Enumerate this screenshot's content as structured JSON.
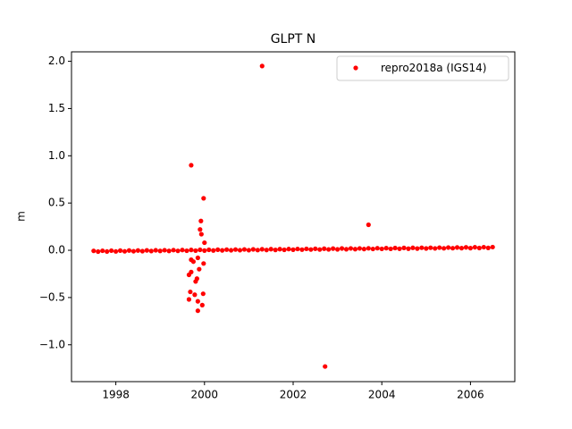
{
  "chart_data": {
    "type": "scatter",
    "title": "GLPT N",
    "ylabel": "m",
    "series": [
      {
        "name": "repro2018a (IGS14)",
        "color": "#ff0000",
        "x": [
          1997.5,
          1997.6,
          1997.7,
          1997.8,
          1997.9,
          1998.0,
          1998.1,
          1998.2,
          1998.3,
          1998.4,
          1998.5,
          1998.6,
          1998.7,
          1998.8,
          1998.9,
          1999.0,
          1999.1,
          1999.2,
          1999.3,
          1999.4,
          1999.5,
          1999.6,
          1999.7,
          1999.8,
          1999.9,
          2000.0,
          2000.1,
          2000.2,
          2000.3,
          2000.4,
          2000.5,
          2000.6,
          2000.7,
          2000.8,
          2000.9,
          2001.0,
          2001.1,
          2001.2,
          2001.3,
          2001.4,
          2001.5,
          2001.6,
          2001.7,
          2001.8,
          2001.9,
          2002.0,
          2002.1,
          2002.2,
          2002.3,
          2002.4,
          2002.5,
          2002.6,
          2002.7,
          2002.8,
          2002.9,
          2003.0,
          2003.1,
          2003.2,
          2003.3,
          2003.4,
          2003.5,
          2003.6,
          2003.7,
          2003.8,
          2003.9,
          2004.0,
          2004.1,
          2004.2,
          2004.3,
          2004.4,
          2004.5,
          2004.6,
          2004.7,
          2004.8,
          2004.9,
          2005.0,
          2005.1,
          2005.2,
          2005.3,
          2005.4,
          2005.5,
          2005.6,
          2005.7,
          2005.8,
          2005.9,
          2006.0,
          2006.1,
          2006.2,
          2006.3,
          2006.4,
          2006.5,
          2001.3,
          1999.7,
          1999.98,
          1999.92,
          1999.9,
          1999.93,
          2000.0,
          2003.7,
          2002.72,
          1999.65,
          1999.7,
          1999.68,
          1999.65,
          1999.78,
          1999.85,
          1999.85,
          1999.95,
          1999.97,
          1999.8,
          1999.83,
          1999.88,
          1999.98,
          1999.7,
          1999.75,
          1999.85
        ],
        "values": [
          -0.006,
          -0.014,
          -0.005,
          -0.013,
          -0.004,
          -0.012,
          -0.003,
          -0.011,
          -0.002,
          -0.01,
          -0.002,
          -0.009,
          -0.001,
          -0.008,
          0.0,
          -0.007,
          0.001,
          -0.007,
          0.002,
          -0.006,
          0.003,
          -0.005,
          0.004,
          -0.004,
          0.005,
          -0.003,
          0.005,
          -0.002,
          0.006,
          -0.001,
          0.007,
          0.0,
          0.008,
          0.001,
          0.009,
          0.001,
          0.01,
          0.002,
          0.011,
          0.003,
          0.012,
          0.004,
          0.012,
          0.005,
          0.013,
          0.006,
          0.014,
          0.007,
          0.015,
          0.008,
          0.016,
          0.008,
          0.017,
          0.009,
          0.018,
          0.01,
          0.019,
          0.011,
          0.02,
          0.012,
          0.02,
          0.013,
          0.021,
          0.014,
          0.022,
          0.015,
          0.023,
          0.015,
          0.024,
          0.016,
          0.025,
          0.017,
          0.026,
          0.018,
          0.027,
          0.019,
          0.027,
          0.02,
          0.028,
          0.021,
          0.029,
          0.022,
          0.03,
          0.023,
          0.031,
          0.023,
          0.032,
          0.024,
          0.033,
          0.025,
          0.034,
          1.95,
          0.9,
          0.55,
          0.31,
          0.22,
          0.17,
          0.08,
          0.27,
          -1.23,
          -0.26,
          -0.23,
          -0.44,
          -0.52,
          -0.47,
          -0.54,
          -0.64,
          -0.58,
          -0.46,
          -0.33,
          -0.3,
          -0.2,
          -0.14,
          -0.1,
          -0.12,
          -0.08
        ]
      }
    ],
    "xlim": [
      1997.0,
      2007.0
    ],
    "ylim": [
      -1.39,
      2.1
    ],
    "xticks": [
      1998,
      2000,
      2002,
      2004,
      2006
    ],
    "yticks": [
      {
        "value": -1.0,
        "label": "−1.0"
      },
      {
        "value": -0.5,
        "label": "−0.5"
      },
      {
        "value": 0.0,
        "label": "0.0"
      },
      {
        "value": 0.5,
        "label": "0.5"
      },
      {
        "value": 1.0,
        "label": "1.0"
      },
      {
        "value": 1.5,
        "label": "1.5"
      },
      {
        "value": 2.0,
        "label": "2.0"
      }
    ],
    "grid": false,
    "legend": "upper right"
  }
}
